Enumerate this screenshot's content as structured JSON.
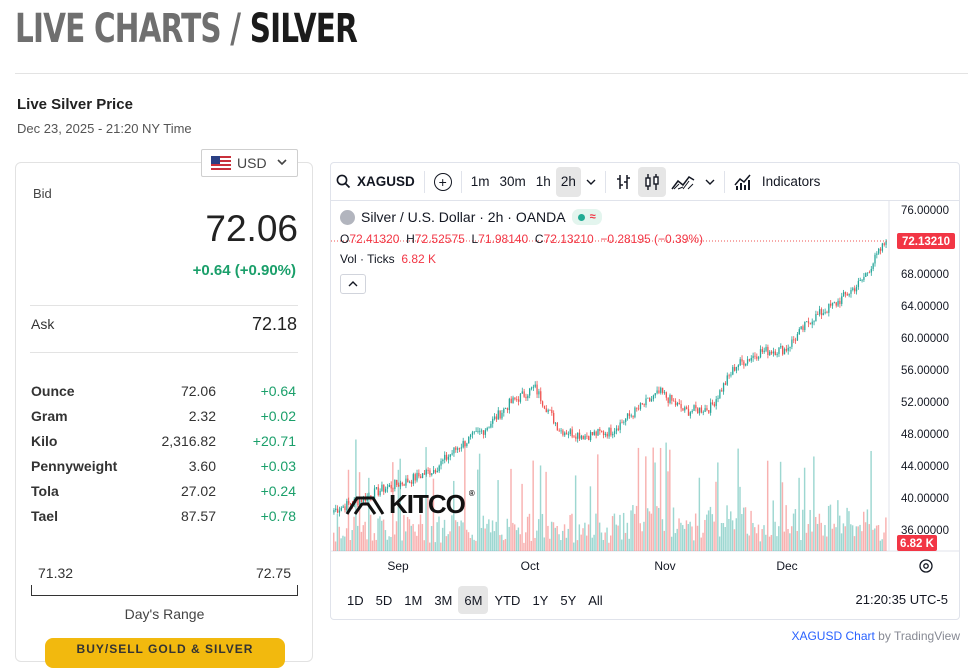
{
  "header": {
    "title_prefix": "LIVE CHARTS / ",
    "title_metal": "SILVER"
  },
  "subheader": {
    "title": "Live Silver Price",
    "timestamp": "Dec 23, 2025 - 21:20 NY Time"
  },
  "currency": {
    "selected": "USD",
    "flag_icon": "us-flag-icon"
  },
  "bid": {
    "label": "Bid",
    "value": "72.06",
    "change": "+0.64 (+0.90%)"
  },
  "ask": {
    "label": "Ask",
    "value": "72.18"
  },
  "units": [
    {
      "name": "Ounce",
      "price": "72.06",
      "change": "+0.64"
    },
    {
      "name": "Gram",
      "price": "2.32",
      "change": "+0.02"
    },
    {
      "name": "Kilo",
      "price": "2,316.82",
      "change": "+20.71"
    },
    {
      "name": "Pennyweight",
      "price": "3.60",
      "change": "+0.03"
    },
    {
      "name": "Tola",
      "price": "27.02",
      "change": "+0.24"
    },
    {
      "name": "Tael",
      "price": "87.57",
      "change": "+0.78"
    }
  ],
  "day_range": {
    "low": "71.32",
    "high": "72.75",
    "label": "Day's Range"
  },
  "cta": {
    "label": "BUY/SELL GOLD & SILVER"
  },
  "toolbar": {
    "symbol": "XAGUSD",
    "intervals": [
      "1m",
      "30m",
      "1h",
      "2h"
    ],
    "selected_interval": "2h",
    "indicators_label": "Indicators"
  },
  "legend": {
    "title": "Silver / U.S. Dollar · 2h · OANDA",
    "o_label": "O",
    "o": "72.41320",
    "h_label": "H",
    "h": "72.52575",
    "l_label": "L",
    "l": "71.98140",
    "c_label": "C",
    "c": "72.13210",
    "change": "−0.28195 (−0.39%)",
    "vol_label": "Vol · Ticks",
    "vol_value": "6.82 K"
  },
  "watermark": "KITCO",
  "range_buttons": [
    "1D",
    "5D",
    "1M",
    "3M",
    "6M",
    "YTD",
    "1Y",
    "5Y",
    "All"
  ],
  "selected_range": "6M",
  "clock": "21:20:35 UTC-5",
  "attribution": {
    "link": "XAGUSD Chart",
    "by": " by TradingView"
  },
  "colors": {
    "up": "#26a69a",
    "down": "#ef5350",
    "accent_green": "#1a9f6a",
    "cta": "#f2b90e"
  },
  "chart_data": {
    "type": "candlestick",
    "x_tick_labels": [
      "Sep",
      "Oct",
      "Nov",
      "Dec"
    ],
    "y_tick_labels": [
      "36.00000",
      "40.00000",
      "44.00000",
      "48.00000",
      "52.00000",
      "56.00000",
      "60.00000",
      "64.00000",
      "68.00000",
      "72.00000",
      "76.00000"
    ],
    "ylim": [
      36,
      76
    ],
    "last_price_label": "72.13210",
    "volume_label": "6.82 K",
    "series": [
      {
        "name": "XAGUSD 2h",
        "x": [
          "Aug 27",
          "Sep 1",
          "Sep 8",
          "Sep 15",
          "Sep 22",
          "Sep 29",
          "Oct 6",
          "Oct 13",
          "Oct 17",
          "Oct 21",
          "Oct 28",
          "Nov 4",
          "Nov 10",
          "Nov 14",
          "Nov 18",
          "Nov 25",
          "Dec 1",
          "Dec 4",
          "Dec 8",
          "Dec 12",
          "Dec 16",
          "Dec 19",
          "Dec 23"
        ],
        "values": [
          38.5,
          39.7,
          41.2,
          42.2,
          43.6,
          46.5,
          48.6,
          51.8,
          53.8,
          48.5,
          47.8,
          48.3,
          50.8,
          53.2,
          50.8,
          51.3,
          56.5,
          58.3,
          58.6,
          62.3,
          64.3,
          67.0,
          72.1
        ]
      }
    ]
  }
}
